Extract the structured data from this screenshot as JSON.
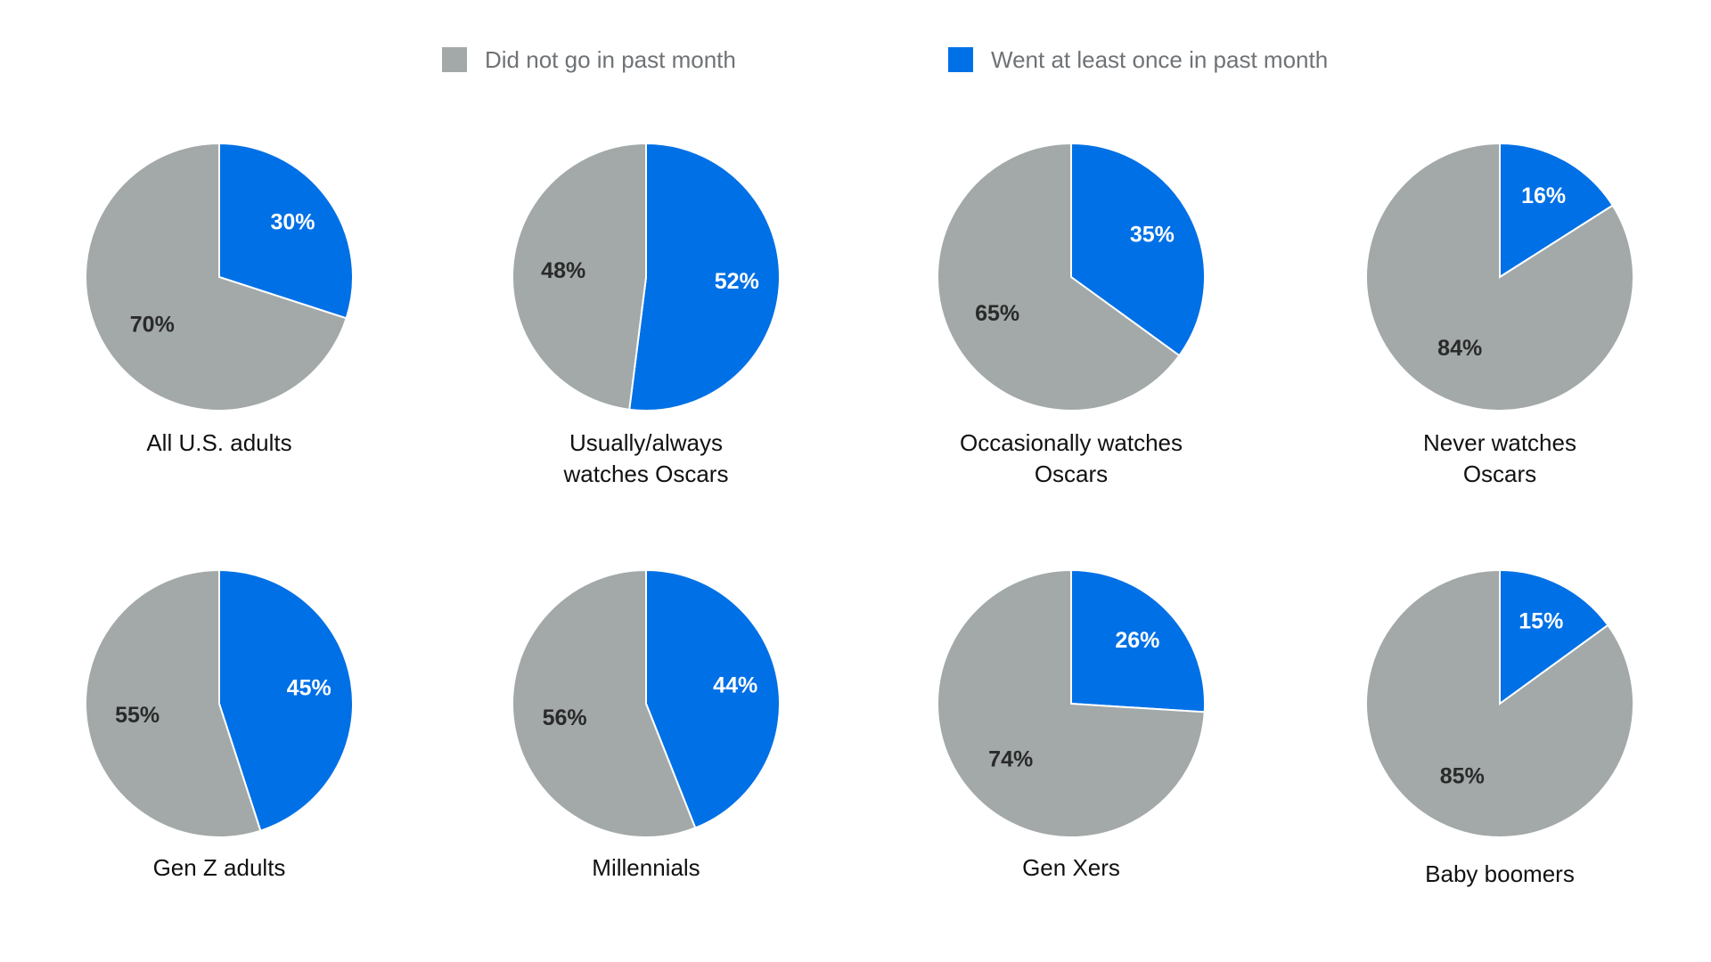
{
  "legend": [
    {
      "label": "Did not go in past month",
      "color": "#a2a9a8"
    },
    {
      "label": "Went at least once in past month",
      "color": "#0070e6"
    }
  ],
  "chart_data": {
    "type": "pie",
    "series_names": [
      "Did not go in past month",
      "Went at least once in past month"
    ],
    "colors": {
      "did_not": "#a2a9a8",
      "went": "#0070e6"
    },
    "value_unit": "%",
    "pies": [
      {
        "caption": [
          "All U.S. adults"
        ],
        "did_not": 70,
        "went": 30
      },
      {
        "caption": [
          "Usually/always",
          "watches Oscars"
        ],
        "did_not": 48,
        "went": 52
      },
      {
        "caption": [
          "Occasionally watches",
          "Oscars"
        ],
        "did_not": 65,
        "went": 35
      },
      {
        "caption": [
          "Never watches",
          "Oscars"
        ],
        "did_not": 84,
        "went": 16
      },
      {
        "caption": [
          "Gen Z adults"
        ],
        "did_not": 55,
        "went": 45
      },
      {
        "caption": [
          "Millennials"
        ],
        "did_not": 56,
        "went": 44
      },
      {
        "caption": [
          "Gen Xers"
        ],
        "did_not": 74,
        "went": 26
      },
      {
        "caption": [
          "Baby boomers"
        ],
        "did_not": 85,
        "went": 15
      }
    ]
  }
}
